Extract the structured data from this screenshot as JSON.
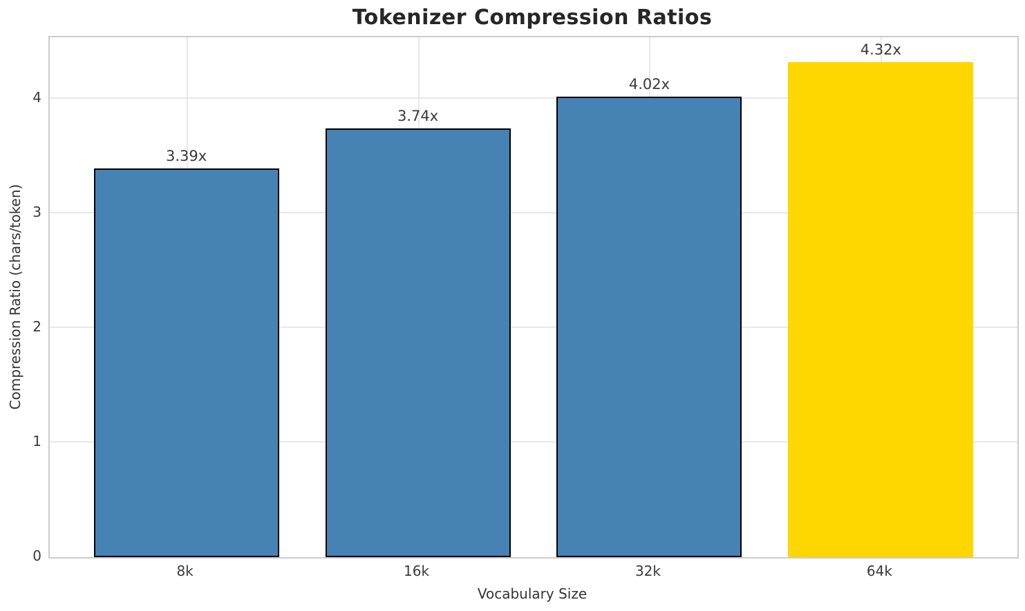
{
  "title": "Tokenizer Compression Ratios",
  "chart_data": {
    "type": "bar",
    "title": "Tokenizer Compression Ratios",
    "xlabel": "Vocabulary Size",
    "ylabel": "Compression Ratio (chars/token)",
    "categories": [
      "8k",
      "16k",
      "32k",
      "64k"
    ],
    "values": [
      3.39,
      3.74,
      4.02,
      4.32
    ],
    "bar_labels": [
      "3.39x",
      "3.74x",
      "4.02x",
      "4.32x"
    ],
    "yticks": [
      0,
      1,
      2,
      3,
      4
    ],
    "ylim": [
      0,
      4.536
    ],
    "grid": true,
    "legend": "none",
    "bar_colors": [
      "#4682B4",
      "#4682B4",
      "#4682B4",
      "#FFD700"
    ],
    "bar_edge_colors": [
      "#000000",
      "#000000",
      "#000000",
      "none"
    ],
    "highlight_index": 3,
    "colors": {
      "bar_default": "#4682B4",
      "bar_highlight": "#FFD700",
      "bar_edge": "#000000",
      "grid": "#e8e8e8",
      "spine": "#cccccc",
      "text": "#3a3a3a",
      "title_text": "#262626"
    }
  }
}
